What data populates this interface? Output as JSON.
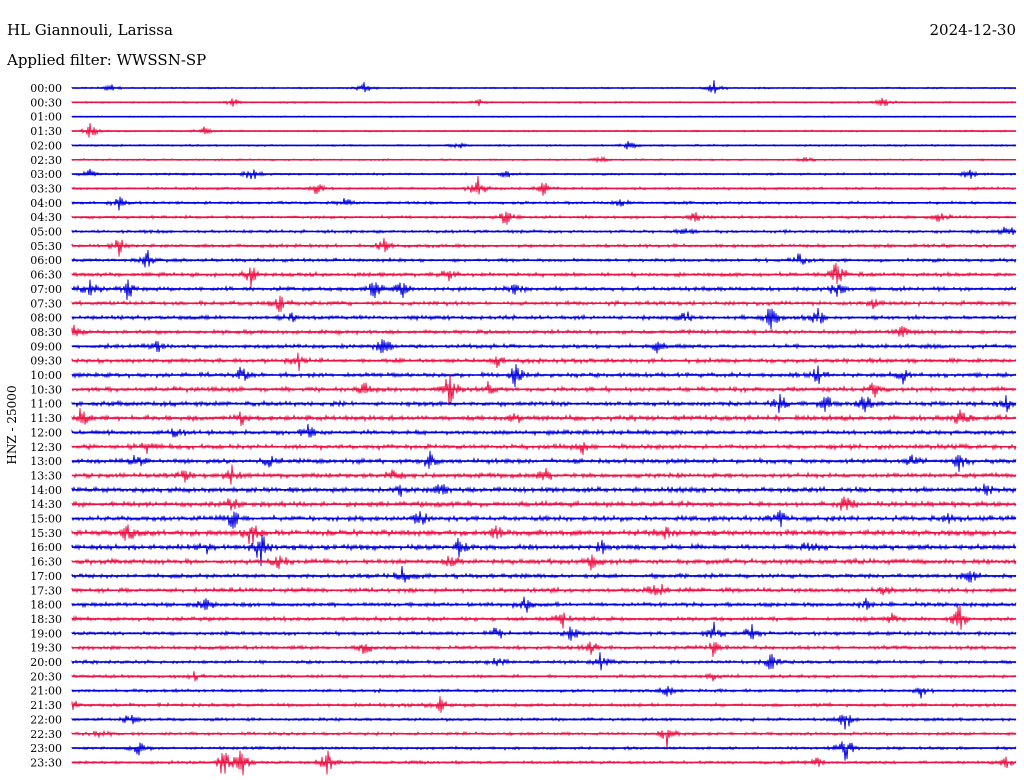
{
  "header": {
    "station": "HL Giannouli, Larissa",
    "date": "2024-12-30",
    "filter": "Applied filter: WWSSN-SP"
  },
  "chart_data": {
    "type": "line",
    "title": "HL Giannouli, Larissa",
    "ylabel": "HNZ - 25000",
    "colors": [
      "#0000dd",
      "#ee1144"
    ],
    "rows": [
      {
        "time": "00:00",
        "color": "#0000dd",
        "activity": 0.08,
        "events": [
          {
            "at": 0.04,
            "amp": 0.4
          },
          {
            "at": 0.31,
            "amp": 0.5
          },
          {
            "at": 0.68,
            "amp": 0.6
          }
        ]
      },
      {
        "time": "00:30",
        "color": "#ee1144",
        "activity": 0.1,
        "events": [
          {
            "at": 0.17,
            "amp": 0.4
          },
          {
            "at": 0.43,
            "amp": 0.3
          },
          {
            "at": 0.86,
            "amp": 0.5
          }
        ]
      },
      {
        "time": "01:00",
        "color": "#0000dd",
        "activity": 0.06,
        "events": []
      },
      {
        "time": "01:30",
        "color": "#ee1144",
        "activity": 0.1,
        "events": [
          {
            "at": 0.02,
            "amp": 0.7
          },
          {
            "at": 0.14,
            "amp": 0.3
          }
        ]
      },
      {
        "time": "02:00",
        "color": "#0000dd",
        "activity": 0.12,
        "events": [
          {
            "at": 0.41,
            "amp": 0.4
          },
          {
            "at": 0.59,
            "amp": 0.4
          }
        ]
      },
      {
        "time": "02:30",
        "color": "#ee1144",
        "activity": 0.12,
        "events": [
          {
            "at": 0.56,
            "amp": 0.3
          },
          {
            "at": 0.78,
            "amp": 0.4
          }
        ]
      },
      {
        "time": "03:00",
        "color": "#0000dd",
        "activity": 0.16,
        "events": [
          {
            "at": 0.02,
            "amp": 0.6
          },
          {
            "at": 0.19,
            "amp": 0.8
          },
          {
            "at": 0.46,
            "amp": 0.4
          },
          {
            "at": 0.95,
            "amp": 0.5
          }
        ]
      },
      {
        "time": "03:30",
        "color": "#ee1144",
        "activity": 0.22,
        "events": [
          {
            "at": 0.26,
            "amp": 0.6
          },
          {
            "at": 0.43,
            "amp": 1.0
          },
          {
            "at": 0.5,
            "amp": 0.6
          }
        ]
      },
      {
        "time": "04:00",
        "color": "#0000dd",
        "activity": 0.25,
        "events": [
          {
            "at": 0.05,
            "amp": 0.6
          },
          {
            "at": 0.29,
            "amp": 0.5
          },
          {
            "at": 0.58,
            "amp": 0.4
          }
        ]
      },
      {
        "time": "04:30",
        "color": "#ee1144",
        "activity": 0.28,
        "events": [
          {
            "at": 0.46,
            "amp": 0.8
          },
          {
            "at": 0.66,
            "amp": 0.5
          },
          {
            "at": 0.92,
            "amp": 0.5
          }
        ]
      },
      {
        "time": "05:00",
        "color": "#0000dd",
        "activity": 0.3,
        "events": [
          {
            "at": 0.65,
            "amp": 0.4
          },
          {
            "at": 0.99,
            "amp": 0.7
          }
        ]
      },
      {
        "time": "05:30",
        "color": "#ee1144",
        "activity": 0.35,
        "events": [
          {
            "at": 0.05,
            "amp": 0.8
          },
          {
            "at": 0.33,
            "amp": 0.6
          }
        ]
      },
      {
        "time": "06:00",
        "color": "#0000dd",
        "activity": 0.35,
        "events": [
          {
            "at": 0.08,
            "amp": 0.9
          },
          {
            "at": 0.77,
            "amp": 0.6
          }
        ]
      },
      {
        "time": "06:30",
        "color": "#ee1144",
        "activity": 0.45,
        "events": [
          {
            "at": 0.19,
            "amp": 0.9
          },
          {
            "at": 0.4,
            "amp": 0.5
          },
          {
            "at": 0.81,
            "amp": 1.3
          }
        ]
      },
      {
        "time": "07:00",
        "color": "#0000dd",
        "activity": 0.45,
        "events": [
          {
            "at": 0.02,
            "amp": 0.9
          },
          {
            "at": 0.06,
            "amp": 1.0
          },
          {
            "at": 0.32,
            "amp": 0.8
          },
          {
            "at": 0.35,
            "amp": 0.7
          },
          {
            "at": 0.47,
            "amp": 0.5
          },
          {
            "at": 0.81,
            "amp": 0.8
          }
        ]
      },
      {
        "time": "07:30",
        "color": "#ee1144",
        "activity": 0.45,
        "events": [
          {
            "at": 0.22,
            "amp": 0.7
          },
          {
            "at": 0.85,
            "amp": 0.5
          }
        ]
      },
      {
        "time": "08:00",
        "color": "#0000dd",
        "activity": 0.45,
        "events": [
          {
            "at": 0.23,
            "amp": 0.5
          },
          {
            "at": 0.65,
            "amp": 0.6
          },
          {
            "at": 0.74,
            "amp": 1.0
          },
          {
            "at": 0.79,
            "amp": 0.8
          }
        ]
      },
      {
        "time": "08:30",
        "color": "#ee1144",
        "activity": 0.45,
        "events": [
          {
            "at": 0.0,
            "amp": 0.6
          },
          {
            "at": 0.88,
            "amp": 0.6
          }
        ]
      },
      {
        "time": "09:00",
        "color": "#0000dd",
        "activity": 0.45,
        "events": [
          {
            "at": 0.09,
            "amp": 0.5
          },
          {
            "at": 0.33,
            "amp": 0.9
          },
          {
            "at": 0.62,
            "amp": 0.7
          }
        ]
      },
      {
        "time": "09:30",
        "color": "#ee1144",
        "activity": 0.5,
        "events": [
          {
            "at": 0.24,
            "amp": 0.9
          },
          {
            "at": 0.45,
            "amp": 0.5
          }
        ]
      },
      {
        "time": "10:00",
        "color": "#0000dd",
        "activity": 0.5,
        "events": [
          {
            "at": 0.18,
            "amp": 0.7
          },
          {
            "at": 0.47,
            "amp": 1.0
          },
          {
            "at": 0.79,
            "amp": 0.8
          },
          {
            "at": 0.88,
            "amp": 0.7
          }
        ]
      },
      {
        "time": "10:30",
        "color": "#ee1144",
        "activity": 0.55,
        "events": [
          {
            "at": 0.31,
            "amp": 0.8
          },
          {
            "at": 0.4,
            "amp": 1.5
          },
          {
            "at": 0.44,
            "amp": 0.6
          },
          {
            "at": 0.85,
            "amp": 0.6
          }
        ]
      },
      {
        "time": "11:00",
        "color": "#0000dd",
        "activity": 0.55,
        "events": [
          {
            "at": 0.75,
            "amp": 0.7
          },
          {
            "at": 0.8,
            "amp": 0.9
          },
          {
            "at": 0.84,
            "amp": 0.8
          },
          {
            "at": 0.99,
            "amp": 0.6
          }
        ]
      },
      {
        "time": "11:30",
        "color": "#ee1144",
        "activity": 0.6,
        "events": [
          {
            "at": 0.01,
            "amp": 0.9
          },
          {
            "at": 0.18,
            "amp": 0.6
          },
          {
            "at": 0.47,
            "amp": 0.5
          },
          {
            "at": 0.94,
            "amp": 0.7
          }
        ]
      },
      {
        "time": "12:00",
        "color": "#0000dd",
        "activity": 0.5,
        "events": [
          {
            "at": 0.11,
            "amp": 0.5
          },
          {
            "at": 0.25,
            "amp": 0.6
          }
        ]
      },
      {
        "time": "12:30",
        "color": "#ee1144",
        "activity": 0.55,
        "events": [
          {
            "at": 0.08,
            "amp": 0.9
          },
          {
            "at": 0.54,
            "amp": 0.6
          }
        ]
      },
      {
        "time": "13:00",
        "color": "#0000dd",
        "activity": 0.55,
        "events": [
          {
            "at": 0.07,
            "amp": 0.8
          },
          {
            "at": 0.21,
            "amp": 0.5
          },
          {
            "at": 0.38,
            "amp": 0.7
          },
          {
            "at": 0.89,
            "amp": 0.6
          },
          {
            "at": 0.94,
            "amp": 0.8
          }
        ]
      },
      {
        "time": "13:30",
        "color": "#ee1144",
        "activity": 0.55,
        "events": [
          {
            "at": 0.12,
            "amp": 0.6
          },
          {
            "at": 0.17,
            "amp": 0.9
          },
          {
            "at": 0.34,
            "amp": 0.6
          },
          {
            "at": 0.5,
            "amp": 0.6
          }
        ]
      },
      {
        "time": "14:00",
        "color": "#0000dd",
        "activity": 0.6,
        "events": [
          {
            "at": 0.35,
            "amp": 0.8
          },
          {
            "at": 0.39,
            "amp": 0.6
          },
          {
            "at": 0.97,
            "amp": 0.6
          }
        ]
      },
      {
        "time": "14:30",
        "color": "#ee1144",
        "activity": 0.6,
        "events": [
          {
            "at": 0.17,
            "amp": 0.8
          },
          {
            "at": 0.82,
            "amp": 0.9
          }
        ]
      },
      {
        "time": "15:00",
        "color": "#0000dd",
        "activity": 0.65,
        "events": [
          {
            "at": 0.17,
            "amp": 1.0
          },
          {
            "at": 0.37,
            "amp": 1.0
          },
          {
            "at": 0.75,
            "amp": 0.7
          },
          {
            "at": 0.93,
            "amp": 0.6
          }
        ]
      },
      {
        "time": "15:30",
        "color": "#ee1144",
        "activity": 0.7,
        "events": [
          {
            "at": 0.06,
            "amp": 0.8
          },
          {
            "at": 0.19,
            "amp": 1.1
          },
          {
            "at": 0.45,
            "amp": 0.7
          },
          {
            "at": 0.63,
            "amp": 0.6
          }
        ]
      },
      {
        "time": "16:00",
        "color": "#0000dd",
        "activity": 0.65,
        "events": [
          {
            "at": 0.14,
            "amp": 0.8
          },
          {
            "at": 0.2,
            "amp": 1.3
          },
          {
            "at": 0.41,
            "amp": 0.7
          },
          {
            "at": 0.56,
            "amp": 0.6
          },
          {
            "at": 0.78,
            "amp": 0.6
          }
        ]
      },
      {
        "time": "16:30",
        "color": "#ee1144",
        "activity": 0.6,
        "events": [
          {
            "at": 0.22,
            "amp": 0.6
          },
          {
            "at": 0.4,
            "amp": 0.6
          },
          {
            "at": 0.55,
            "amp": 0.6
          }
        ]
      },
      {
        "time": "17:00",
        "color": "#0000dd",
        "activity": 0.5,
        "events": [
          {
            "at": 0.35,
            "amp": 0.7
          },
          {
            "at": 0.95,
            "amp": 0.7
          }
        ]
      },
      {
        "time": "17:30",
        "color": "#ee1144",
        "activity": 0.5,
        "events": [
          {
            "at": 0.62,
            "amp": 1.1
          },
          {
            "at": 0.86,
            "amp": 0.6
          }
        ]
      },
      {
        "time": "18:00",
        "color": "#0000dd",
        "activity": 0.45,
        "events": [
          {
            "at": 0.14,
            "amp": 0.6
          },
          {
            "at": 0.48,
            "amp": 0.7
          },
          {
            "at": 0.84,
            "amp": 0.6
          }
        ]
      },
      {
        "time": "18:30",
        "color": "#ee1144",
        "activity": 0.45,
        "events": [
          {
            "at": 0.94,
            "amp": 1.4
          },
          {
            "at": 0.52,
            "amp": 0.7
          },
          {
            "at": 0.87,
            "amp": 0.6
          }
        ]
      },
      {
        "time": "19:00",
        "color": "#0000dd",
        "activity": 0.4,
        "events": [
          {
            "at": 0.45,
            "amp": 0.6
          },
          {
            "at": 0.53,
            "amp": 0.9
          },
          {
            "at": 0.68,
            "amp": 0.8
          },
          {
            "at": 0.72,
            "amp": 0.7
          }
        ]
      },
      {
        "time": "19:30",
        "color": "#ee1144",
        "activity": 0.4,
        "events": [
          {
            "at": 0.31,
            "amp": 0.6
          },
          {
            "at": 0.55,
            "amp": 0.7
          },
          {
            "at": 0.68,
            "amp": 0.7
          }
        ]
      },
      {
        "time": "20:00",
        "color": "#0000dd",
        "activity": 0.35,
        "events": [
          {
            "at": 0.45,
            "amp": 0.6
          },
          {
            "at": 0.56,
            "amp": 0.8
          },
          {
            "at": 0.74,
            "amp": 0.8
          }
        ]
      },
      {
        "time": "20:30",
        "color": "#ee1144",
        "activity": 0.3,
        "events": [
          {
            "at": 0.13,
            "amp": 0.4
          },
          {
            "at": 0.68,
            "amp": 0.4
          }
        ]
      },
      {
        "time": "21:00",
        "color": "#0000dd",
        "activity": 0.3,
        "events": [
          {
            "at": 0.63,
            "amp": 0.6
          },
          {
            "at": 0.9,
            "amp": 0.6
          }
        ]
      },
      {
        "time": "21:30",
        "color": "#ee1144",
        "activity": 0.35,
        "events": [
          {
            "at": 0.0,
            "amp": 0.6
          },
          {
            "at": 0.39,
            "amp": 0.6
          }
        ]
      },
      {
        "time": "22:00",
        "color": "#0000dd",
        "activity": 0.3,
        "events": [
          {
            "at": 0.06,
            "amp": 0.7
          },
          {
            "at": 0.82,
            "amp": 1.0
          }
        ]
      },
      {
        "time": "22:30",
        "color": "#ee1144",
        "activity": 0.3,
        "events": [
          {
            "at": 0.03,
            "amp": 0.4
          },
          {
            "at": 0.63,
            "amp": 1.2
          }
        ]
      },
      {
        "time": "23:00",
        "color": "#0000dd",
        "activity": 0.28,
        "events": [
          {
            "at": 0.07,
            "amp": 0.7
          },
          {
            "at": 0.82,
            "amp": 1.3
          }
        ]
      },
      {
        "time": "23:30",
        "color": "#ee1144",
        "activity": 0.28,
        "events": [
          {
            "at": 0.16,
            "amp": 1.3
          },
          {
            "at": 0.18,
            "amp": 1.3
          },
          {
            "at": 0.27,
            "amp": 1.2
          },
          {
            "at": 0.79,
            "amp": 0.5
          },
          {
            "at": 0.99,
            "amp": 0.6
          }
        ]
      }
    ]
  }
}
